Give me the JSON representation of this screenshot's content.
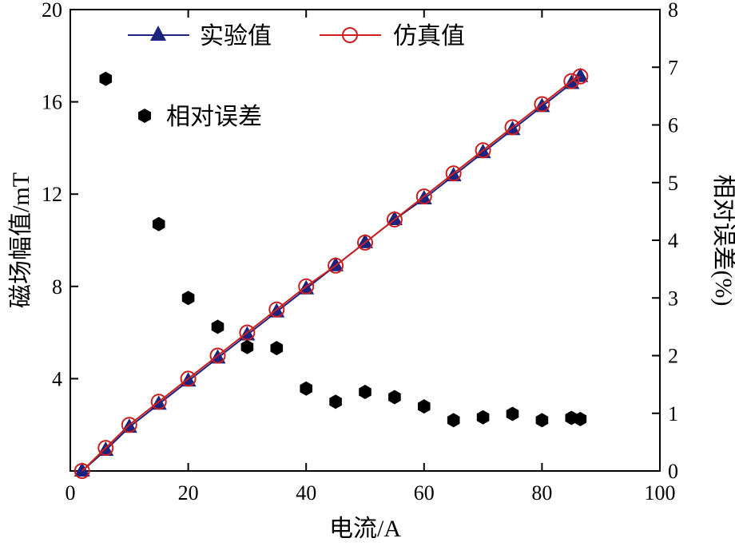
{
  "chart_data": {
    "type": "line",
    "title": "",
    "xlabel": "电流/A",
    "ylabel": "磁场幅值/mT",
    "y2label": "相对误差(%)",
    "xlim": [
      0,
      100
    ],
    "ylim": [
      0,
      20
    ],
    "y2lim": [
      0,
      8
    ],
    "xticks": [
      0,
      20,
      40,
      60,
      80,
      100
    ],
    "yticks": [
      4,
      8,
      12,
      16,
      20
    ],
    "y2ticks": [
      0,
      1,
      2,
      3,
      4,
      5,
      6,
      7,
      8
    ],
    "series": [
      {
        "name": "实验值",
        "axis": "left",
        "marker": "triangle",
        "color": "#1a237e",
        "x": [
          2,
          6,
          10,
          15,
          20,
          25,
          30,
          35,
          40,
          45,
          50,
          55,
          60,
          65,
          70,
          75,
          80,
          85,
          86.5
        ],
        "y": [
          0.0,
          0.9,
          1.9,
          2.9,
          3.9,
          4.9,
          5.9,
          6.9,
          7.9,
          8.9,
          9.9,
          10.9,
          11.8,
          12.8,
          13.8,
          14.8,
          15.8,
          16.8,
          17.1
        ]
      },
      {
        "name": "仿真值",
        "axis": "left",
        "marker": "circle",
        "color": "#cc1f1f",
        "x": [
          2,
          6,
          10,
          15,
          20,
          25,
          30,
          35,
          40,
          45,
          50,
          55,
          60,
          65,
          70,
          75,
          80,
          85,
          86.5
        ],
        "y": [
          0.0,
          1.0,
          2.0,
          3.0,
          4.0,
          5.0,
          6.0,
          7.0,
          8.0,
          8.9,
          9.9,
          10.9,
          11.9,
          12.9,
          13.9,
          14.9,
          15.9,
          16.9,
          17.1
        ]
      },
      {
        "name": "相对误差",
        "axis": "right",
        "marker": "hexagon",
        "color": "#000000",
        "x": [
          6,
          15,
          20,
          25,
          30,
          35,
          40,
          45,
          50,
          55,
          60,
          65,
          70,
          75,
          80,
          85,
          86.5
        ],
        "y": [
          6.8,
          4.28,
          3.0,
          2.5,
          2.15,
          2.13,
          1.43,
          1.2,
          1.37,
          1.28,
          1.12,
          0.88,
          0.93,
          0.99,
          0.88,
          0.92,
          0.9
        ]
      }
    ],
    "legend": {
      "position": "top-left",
      "items": [
        "实验值",
        "仿真值"
      ],
      "extra_item": "相对误差"
    },
    "grid": false
  }
}
